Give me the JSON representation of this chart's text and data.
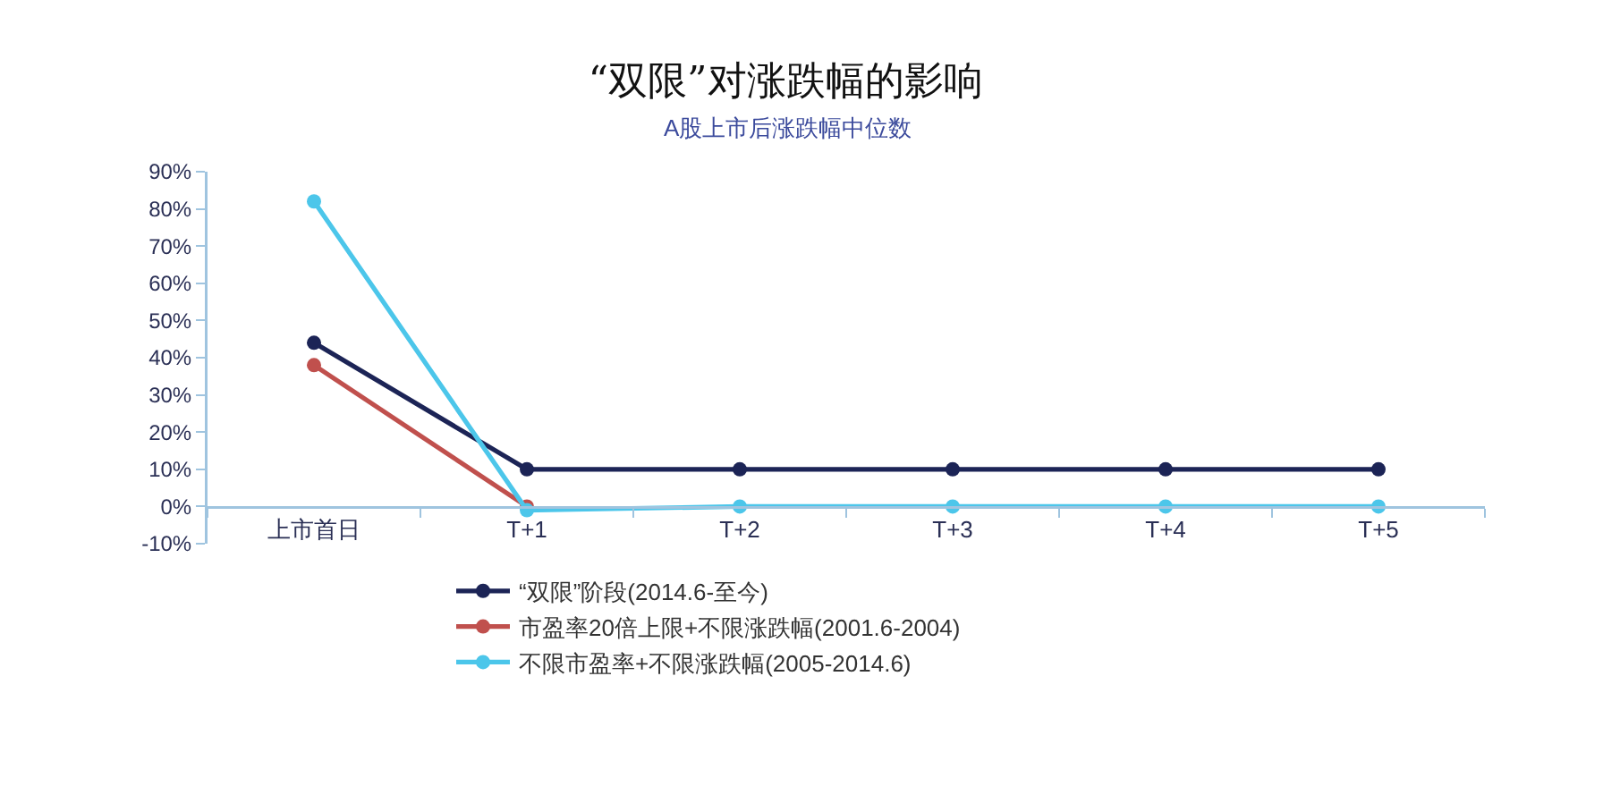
{
  "chart_data": {
    "type": "line",
    "title": "“双限”对涨跌幅的影响",
    "subtitle": "A股上市后涨跌幅中位数",
    "categories": [
      "上市首日",
      "T+1",
      "T+2",
      "T+3",
      "T+4",
      "T+5"
    ],
    "series": [
      {
        "name": "“双限”阶段(2014.6-至今)",
        "color": "#1c2456",
        "values": [
          44,
          10,
          10,
          10,
          10,
          10
        ]
      },
      {
        "name": "市盈率20倍上限+不限涨跌幅(2001.6-2004)",
        "color": "#c0504d",
        "values": [
          38,
          0,
          null,
          null,
          null,
          null
        ]
      },
      {
        "name": "不限市盈率+不限涨跌幅(2005-2014.6)",
        "color": "#4cc6ea",
        "values": [
          82,
          -1,
          0,
          0,
          0,
          0
        ]
      }
    ],
    "ylim": [
      -10,
      90
    ],
    "yticks": [
      {
        "value": -10,
        "label": "-10%"
      },
      {
        "value": 0,
        "label": "0%"
      },
      {
        "value": 10,
        "label": "10%"
      },
      {
        "value": 20,
        "label": "20%"
      },
      {
        "value": 30,
        "label": "30%"
      },
      {
        "value": 40,
        "label": "40%"
      },
      {
        "value": 50,
        "label": "50%"
      },
      {
        "value": 60,
        "label": "60%"
      },
      {
        "value": 70,
        "label": "70%"
      },
      {
        "value": 80,
        "label": "80%"
      },
      {
        "value": 90,
        "label": "90%"
      }
    ],
    "legend": "bottom",
    "marker": "circle",
    "line_style": "solid"
  }
}
